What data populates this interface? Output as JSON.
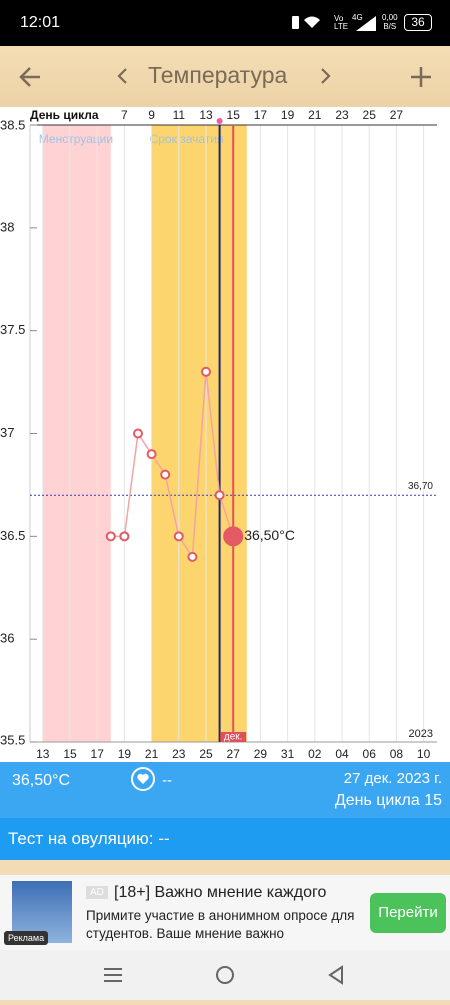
{
  "status_bar": {
    "time": "12:01",
    "speed_value": "0,00",
    "speed_unit": "B/S",
    "battery": "36"
  },
  "toolbar": {
    "title": "Температура"
  },
  "chart_data": {
    "type": "line",
    "categories": [
      "13",
      null,
      "15",
      null,
      "17",
      null,
      "19",
      null,
      "21",
      null,
      "23",
      null,
      "25",
      null,
      "27",
      null,
      "29",
      null,
      "31",
      null,
      "02",
      null,
      "04",
      null,
      "06",
      null,
      "08",
      null,
      "10",
      null
    ],
    "cycle_axis_label": "День цикла",
    "cycle_labels": [
      null,
      null,
      null,
      null,
      null,
      null,
      "7",
      null,
      "9",
      null,
      "11",
      null,
      "13",
      null,
      "15",
      null,
      "17",
      null,
      "19",
      null,
      "21",
      null,
      "23",
      null,
      "25",
      null,
      "27",
      null,
      null,
      null
    ],
    "series": [
      {
        "name": "Температура",
        "color": "#e35a64",
        "line_color": "#f4a3a6",
        "values": [
          null,
          null,
          null,
          null,
          null,
          36.5,
          36.5,
          37.0,
          36.9,
          36.8,
          36.5,
          36.4,
          37.3,
          36.7,
          36.5,
          null,
          null,
          null,
          null,
          null,
          null,
          null,
          null,
          null,
          null,
          null,
          null,
          null,
          null,
          null
        ]
      }
    ],
    "ylim": [
      35.5,
      38.5
    ],
    "yticks": [
      35.5,
      36,
      36.5,
      37,
      37.5,
      38,
      38.5
    ],
    "periods": [
      {
        "name": "Менструации",
        "color": "#ffd3d3",
        "text_color": "#9fc3e8",
        "start": 0,
        "end": 5
      },
      {
        "name": "Срок зачатия",
        "color": "#fcd56e",
        "text_color": "#9fc3e8",
        "start": 8,
        "end": 15
      }
    ],
    "reference_line": {
      "value": 36.7,
      "label": "36,70",
      "color": "#3a3aa8"
    },
    "markers": [
      {
        "index": 13,
        "color": "#20286a"
      },
      {
        "index": 14,
        "color": "#e0505a",
        "label": "дек."
      }
    ],
    "current": {
      "index": 14,
      "label": "36,50°C"
    },
    "year_label": "2023",
    "grid": true
  },
  "info": {
    "temperature": "36,50°C",
    "mood": "--",
    "date": "27 дек. 2023 г.",
    "cycle_day": "День цикла 15",
    "ovulation_test": "Тест на овуляцию: --"
  },
  "ad": {
    "badge": "AD",
    "title": "[18+] Важно мнение каждого",
    "text": "Примите участие в анонимном опросе для студентов. Ваше мнение важно",
    "button": "Перейти",
    "label": "Реклама"
  }
}
